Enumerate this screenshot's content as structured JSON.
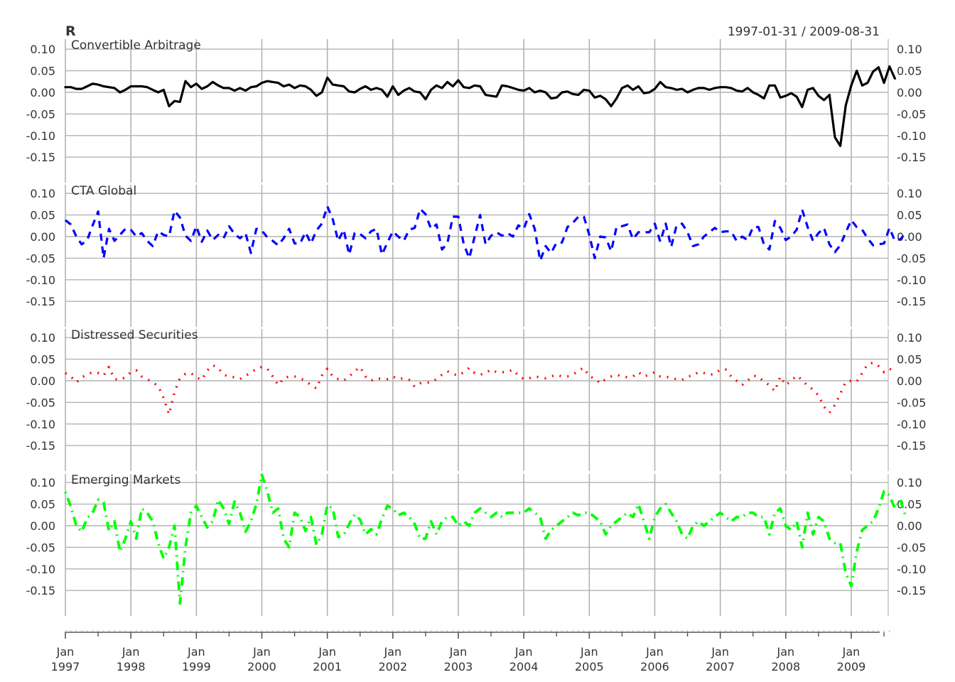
{
  "header": {
    "title": "R",
    "date_range": "1997-01-31 / 2009-08-31"
  },
  "chart_data": {
    "type": "line",
    "x_start": "1997-01",
    "x_end": "2009-08",
    "frequency": "monthly",
    "ylim": [
      -0.19,
      0.12
    ],
    "y_ticks": [
      "0.10",
      "0.05",
      "0.00",
      "-0.05",
      "-0.10",
      "-0.15"
    ],
    "y_tick_values": [
      0.1,
      0.05,
      0.0,
      -0.05,
      -0.1,
      -0.15
    ],
    "x_ticks": [
      {
        "month": "Jan",
        "year": "1997"
      },
      {
        "month": "Jan",
        "year": "1998"
      },
      {
        "month": "Jan",
        "year": "1999"
      },
      {
        "month": "Jan",
        "year": "2000"
      },
      {
        "month": "Jan",
        "year": "2001"
      },
      {
        "month": "Jan",
        "year": "2002"
      },
      {
        "month": "Jan",
        "year": "2003"
      },
      {
        "month": "Jan",
        "year": "2004"
      },
      {
        "month": "Jan",
        "year": "2005"
      },
      {
        "month": "Jan",
        "year": "2006"
      },
      {
        "month": "Jan",
        "year": "2007"
      },
      {
        "month": "Jan",
        "year": "2008"
      },
      {
        "month": "Jan",
        "year": "2009"
      }
    ],
    "grid": true,
    "panels": [
      {
        "name": "Convertible Arbitrage",
        "color": "#000000",
        "line_style": "solid",
        "values": [
          0.012,
          0.012,
          0.008,
          0.008,
          0.014,
          0.02,
          0.018,
          0.014,
          0.012,
          0.01,
          0.0,
          0.006,
          0.014,
          0.014,
          0.014,
          0.012,
          0.006,
          0.0,
          0.006,
          -0.032,
          -0.02,
          -0.022,
          0.026,
          0.012,
          0.02,
          0.008,
          0.014,
          0.024,
          0.016,
          0.01,
          0.01,
          0.004,
          0.01,
          0.004,
          0.012,
          0.014,
          0.022,
          0.026,
          0.024,
          0.022,
          0.014,
          0.018,
          0.01,
          0.016,
          0.014,
          0.006,
          -0.008,
          0.0,
          0.034,
          0.018,
          0.016,
          0.014,
          0.002,
          0.0,
          0.008,
          0.014,
          0.006,
          0.01,
          0.006,
          -0.01,
          0.014,
          -0.006,
          0.004,
          0.01,
          0.002,
          0.0,
          -0.016,
          0.006,
          0.016,
          0.01,
          0.024,
          0.014,
          0.028,
          0.012,
          0.01,
          0.016,
          0.014,
          -0.006,
          -0.008,
          -0.01,
          0.016,
          0.014,
          0.01,
          0.006,
          0.004,
          0.01,
          0.0,
          0.004,
          0.0,
          -0.014,
          -0.012,
          0.0,
          0.002,
          -0.004,
          -0.006,
          0.006,
          0.004,
          -0.012,
          -0.008,
          -0.016,
          -0.032,
          -0.014,
          0.01,
          0.016,
          0.006,
          0.014,
          -0.002,
          0.0,
          0.008,
          0.024,
          0.012,
          0.01,
          0.006,
          0.008,
          0.0,
          0.006,
          0.01,
          0.01,
          0.006,
          0.01,
          0.012,
          0.012,
          0.01,
          0.004,
          0.002,
          0.01,
          0.0,
          -0.006,
          -0.014,
          0.016,
          0.016,
          -0.012,
          -0.008,
          -0.002,
          -0.01,
          -0.034,
          0.006,
          0.01,
          -0.008,
          -0.018,
          -0.006,
          -0.104,
          -0.124,
          -0.03,
          0.016,
          0.05,
          0.016,
          0.022,
          0.048,
          0.058,
          0.022,
          0.06,
          0.032
        ]
      },
      {
        "name": "CTA Global",
        "color": "#0000FF",
        "line_style": "dashed",
        "values": [
          0.038,
          0.028,
          0.0,
          -0.018,
          -0.008,
          0.026,
          0.058,
          -0.05,
          0.018,
          -0.01,
          0.004,
          0.018,
          0.016,
          0.0,
          0.008,
          -0.01,
          -0.022,
          0.012,
          0.004,
          0.0,
          0.06,
          0.044,
          0.002,
          -0.01,
          0.024,
          -0.012,
          0.014,
          -0.008,
          0.004,
          -0.004,
          0.024,
          0.006,
          -0.004,
          0.008,
          -0.038,
          0.018,
          0.014,
          -0.002,
          -0.01,
          -0.02,
          -0.004,
          0.018,
          -0.016,
          -0.016,
          0.01,
          -0.016,
          0.014,
          0.03,
          0.07,
          0.04,
          -0.01,
          0.016,
          -0.042,
          0.008,
          0.006,
          -0.004,
          0.012,
          0.018,
          -0.042,
          -0.014,
          0.012,
          0.0,
          -0.01,
          0.016,
          0.02,
          0.064,
          0.052,
          0.018,
          0.028,
          -0.03,
          -0.016,
          0.046,
          0.046,
          -0.018,
          -0.05,
          0.0,
          0.05,
          -0.018,
          0.002,
          0.01,
          0.002,
          0.008,
          0.0,
          0.026,
          0.018,
          0.052,
          0.018,
          -0.056,
          -0.022,
          -0.038,
          -0.014,
          -0.014,
          0.022,
          0.032,
          0.046,
          0.046,
          0.004,
          -0.05,
          0.0,
          -0.002,
          -0.034,
          0.022,
          0.024,
          0.028,
          -0.006,
          0.01,
          0.01,
          0.01,
          0.03,
          -0.012,
          0.03,
          -0.024,
          0.026,
          0.03,
          0.01,
          -0.022,
          -0.018,
          0.0,
          0.01,
          0.02,
          0.01,
          0.012,
          0.012,
          -0.01,
          0.0,
          -0.008,
          0.022,
          0.022,
          -0.018,
          -0.03,
          0.036,
          0.02,
          -0.008,
          0.0,
          0.016,
          0.062,
          0.022,
          -0.01,
          0.008,
          0.02,
          -0.018,
          -0.036,
          -0.02,
          0.01,
          0.038,
          0.022,
          0.016,
          -0.004,
          -0.02,
          -0.018,
          -0.016,
          0.02,
          -0.01,
          -0.006,
          0.008
        ]
      },
      {
        "name": "Distressed Securities",
        "color": "#FF0000",
        "line_style": "dotted",
        "values": [
          0.018,
          0.01,
          -0.004,
          0.008,
          0.014,
          0.02,
          0.018,
          0.012,
          0.032,
          0.004,
          0.002,
          0.008,
          0.02,
          0.024,
          0.01,
          0.004,
          -0.004,
          -0.012,
          -0.04,
          -0.078,
          -0.026,
          0.006,
          0.016,
          0.018,
          0.008,
          0.002,
          0.024,
          0.036,
          0.03,
          0.014,
          0.01,
          0.008,
          0.004,
          0.012,
          0.018,
          0.028,
          0.032,
          0.028,
          0.01,
          -0.01,
          0.006,
          0.01,
          0.01,
          0.006,
          0.0,
          -0.01,
          -0.018,
          0.012,
          0.028,
          0.01,
          0.004,
          0.0,
          0.01,
          0.022,
          0.032,
          0.01,
          0.0,
          0.006,
          0.004,
          0.004,
          0.01,
          0.004,
          0.006,
          0.002,
          -0.014,
          -0.006,
          -0.004,
          -0.004,
          0.004,
          0.014,
          0.022,
          0.016,
          0.012,
          0.02,
          0.03,
          0.018,
          0.014,
          0.018,
          0.026,
          0.02,
          0.02,
          0.02,
          0.026,
          0.012,
          0.004,
          0.006,
          0.01,
          0.008,
          0.006,
          0.01,
          0.014,
          0.01,
          0.01,
          0.014,
          0.024,
          0.03,
          0.01,
          0.006,
          -0.006,
          0.004,
          0.01,
          0.014,
          0.01,
          0.008,
          0.01,
          0.02,
          0.01,
          0.014,
          0.02,
          0.01,
          0.01,
          0.006,
          0.004,
          0.002,
          0.01,
          0.012,
          0.02,
          0.018,
          0.014,
          0.016,
          0.026,
          0.026,
          0.01,
          0.0,
          -0.01,
          0.0,
          0.012,
          0.01,
          -0.002,
          -0.01,
          -0.024,
          0.01,
          -0.01,
          0.0,
          0.012,
          0.002,
          -0.012,
          -0.02,
          -0.034,
          -0.06,
          -0.074,
          -0.056,
          -0.03,
          -0.002,
          0.0,
          -0.002,
          0.018,
          0.038,
          0.042,
          0.034,
          0.02,
          0.028,
          0.02
        ]
      },
      {
        "name": "Emerging Markets",
        "color": "#00FF00",
        "line_style": "dotdash",
        "values": [
          0.078,
          0.044,
          0.0,
          -0.014,
          0.018,
          0.03,
          0.06,
          0.054,
          -0.012,
          0.01,
          -0.06,
          -0.03,
          0.01,
          -0.03,
          0.04,
          0.03,
          0.01,
          -0.04,
          -0.076,
          -0.05,
          0.0,
          -0.18,
          -0.05,
          0.03,
          0.046,
          0.02,
          -0.004,
          0.01,
          0.06,
          0.04,
          0.004,
          0.056,
          0.03,
          -0.014,
          0.01,
          0.05,
          0.118,
          0.08,
          0.03,
          0.04,
          -0.03,
          -0.05,
          0.03,
          0.02,
          -0.012,
          0.02,
          -0.044,
          -0.02,
          0.048,
          0.04,
          -0.026,
          -0.022,
          0.004,
          0.026,
          0.014,
          -0.02,
          -0.008,
          -0.02,
          0.016,
          0.046,
          0.04,
          0.024,
          0.03,
          0.02,
          0.004,
          -0.03,
          -0.03,
          0.01,
          -0.02,
          0.01,
          0.02,
          0.02,
          0.0,
          0.01,
          0.0,
          0.03,
          0.04,
          0.03,
          0.02,
          0.03,
          0.02,
          0.03,
          0.03,
          0.03,
          0.03,
          0.04,
          0.03,
          0.02,
          -0.03,
          -0.01,
          0.0,
          0.01,
          0.02,
          0.03,
          0.024,
          0.03,
          0.03,
          0.02,
          0.01,
          -0.02,
          0.0,
          0.01,
          0.02,
          0.03,
          0.02,
          0.05,
          0.01,
          -0.03,
          0.02,
          0.04,
          0.05,
          0.03,
          0.01,
          -0.02,
          -0.03,
          0.0,
          0.01,
          0.0,
          0.01,
          0.02,
          0.03,
          0.02,
          0.01,
          0.02,
          0.02,
          0.03,
          0.03,
          0.02,
          0.02,
          -0.02,
          0.03,
          0.04,
          0.0,
          -0.01,
          0.01,
          -0.05,
          0.03,
          -0.02,
          0.02,
          0.01,
          -0.03,
          -0.04,
          -0.04,
          -0.11,
          -0.14,
          -0.06,
          -0.01,
          0.0,
          0.01,
          0.04,
          0.08,
          0.07,
          0.04,
          0.06,
          0.02
        ]
      }
    ]
  }
}
